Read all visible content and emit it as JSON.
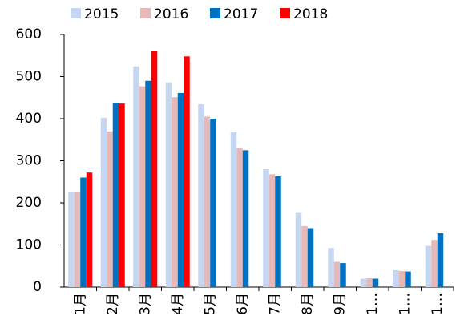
{
  "chart_data": {
    "type": "bar",
    "categories": [
      "1月",
      "2月",
      "3月",
      "4月",
      "5月",
      "6月",
      "7月",
      "8月",
      "9月",
      "1…",
      "1…",
      "1…"
    ],
    "series": [
      {
        "name": "2015",
        "color": "#c5d6f0",
        "values": [
          225,
          402,
          524,
          486,
          434,
          368,
          280,
          178,
          93,
          20,
          40,
          98
        ]
      },
      {
        "name": "2016",
        "color": "#e6b9b8",
        "values": [
          225,
          370,
          477,
          451,
          405,
          331,
          268,
          145,
          60,
          21,
          38,
          112
        ]
      },
      {
        "name": "2017",
        "color": "#0070c0",
        "values": [
          260,
          438,
          490,
          461,
          400,
          325,
          263,
          140,
          57,
          20,
          37,
          128
        ]
      },
      {
        "name": "2018",
        "color": "#ff0000",
        "values": [
          272,
          436,
          560,
          548,
          null,
          null,
          null,
          null,
          null,
          null,
          null,
          null
        ]
      }
    ],
    "ylim": [
      0,
      600
    ],
    "yticks": [
      0,
      100,
      200,
      300,
      400,
      500,
      600
    ],
    "grid": false
  }
}
